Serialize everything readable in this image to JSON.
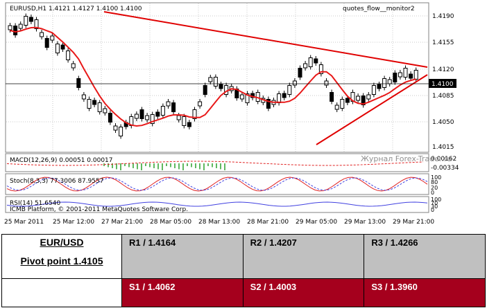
{
  "chart": {
    "symbol_header": "EURUSD,H1  1.4121 1.4127 1.4100 1.4100",
    "indicator_name": "quotes_flow__monitor2",
    "price_ticks": [
      "1.4190",
      "1.4155",
      "1.4120",
      "1.4085",
      "1.4050",
      "1.4015"
    ],
    "current_price": "1.4100",
    "time_labels": [
      "25 Mar 2011",
      "25 Mar 12:00",
      "27 Mar 21:00",
      "28 Mar 05:00",
      "28 Mar 13:00",
      "28 Mar 21:00",
      "29 Mar 05:00",
      "29 Mar 13:00",
      "29 Mar 21:00"
    ],
    "macd_label": "MACD(12,26,9) 0.00051 0.00017",
    "macd_ticks": [
      "0.00162",
      "-0.00334"
    ],
    "stoch_label": "Stoch(8,3,3) 77.3006 87.9557",
    "stoch_ticks": [
      "100",
      "80",
      "20",
      "0"
    ],
    "rsi_label": "RSI(14) 51.6540",
    "rsi_ticks": [
      "100",
      "70",
      "30",
      "0"
    ],
    "copyright": "ICMB Platform, © 2001-2011 MetaQuotes Software Corp.",
    "watermark": "Журнал Forex-Trader.ru",
    "colors": {
      "background": "#ffffff",
      "grid": "#c0c0c0",
      "candle": "#000000",
      "ma": "#e81818",
      "trendline": "#e00000",
      "macd_hist": "#2aa02a",
      "macd_signal": "#e02020",
      "stoch_main": "#e02020",
      "stoch_signal": "#4040e0",
      "rsi": "#4040e0"
    }
  },
  "pivot": {
    "title": "EUR/USD",
    "pivot_point": "Pivot point 1.4105",
    "resistance": [
      "R1 / 1.4164",
      "R2 / 1.4207",
      "R3 / 1.4266"
    ],
    "support": [
      "S1 / 1.4062",
      "S2 / 1.4003",
      "S3 / 1.3960"
    ]
  }
}
